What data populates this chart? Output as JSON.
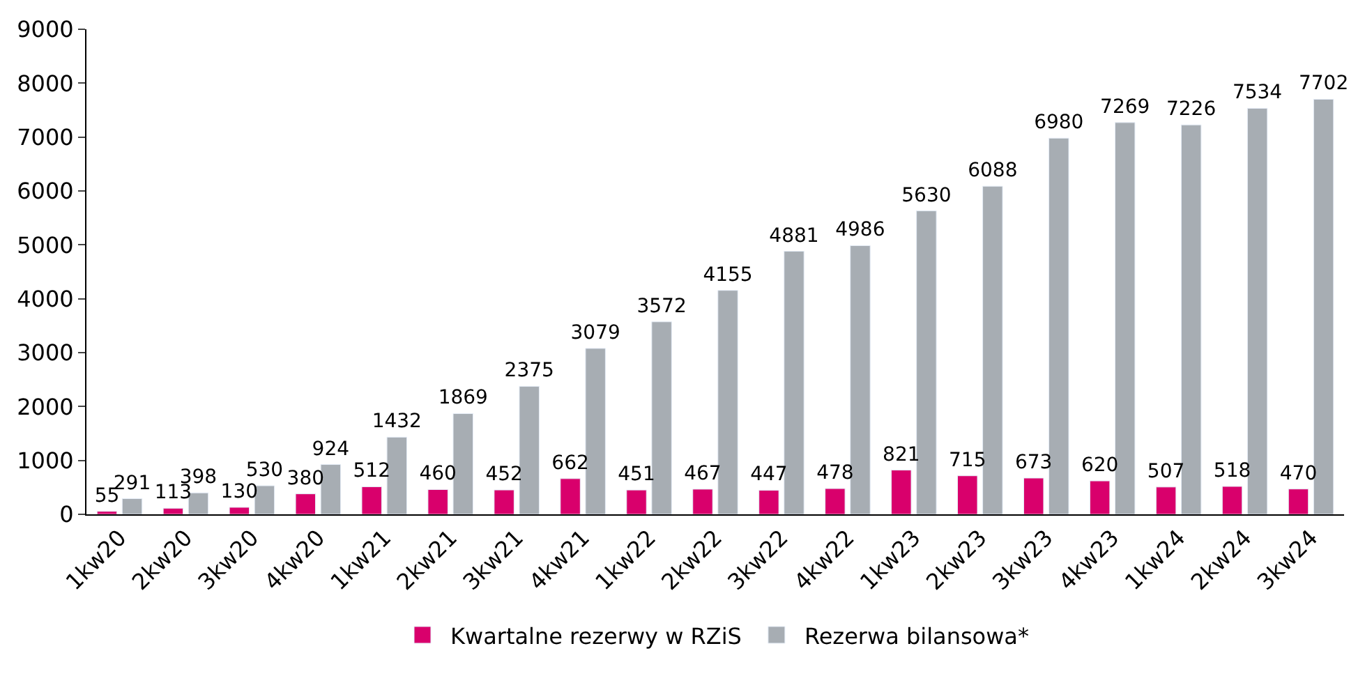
{
  "chart_data": {
    "type": "bar",
    "categories": [
      "1kw20",
      "2kw20",
      "3kw20",
      "4kw20",
      "1kw21",
      "2kw21",
      "3kw21",
      "4kw21",
      "1kw22",
      "2kw22",
      "3kw22",
      "4kw22",
      "1kw23",
      "2kw23",
      "3kw23",
      "4kw23",
      "1kw24",
      "2kw24",
      "3kw24"
    ],
    "series": [
      {
        "name": "Kwartalne rezerwy w RZiS",
        "color": "#d9006c",
        "values": [
          55,
          113,
          130,
          380,
          512,
          460,
          452,
          662,
          451,
          467,
          447,
          478,
          821,
          715,
          673,
          620,
          507,
          518,
          470
        ]
      },
      {
        "name": "Rezerwa bilansowa*",
        "color": "#a7adb3",
        "values": [
          291,
          398,
          530,
          924,
          1432,
          1869,
          2375,
          3079,
          3572,
          4155,
          4881,
          4986,
          5630,
          6088,
          6980,
          7269,
          7226,
          7534,
          7702
        ]
      }
    ],
    "ylim": [
      0,
      9000
    ],
    "yticks": [
      0,
      1000,
      2000,
      3000,
      4000,
      5000,
      6000,
      7000,
      8000,
      9000
    ],
    "data_labels": true,
    "legend": "bottom"
  }
}
